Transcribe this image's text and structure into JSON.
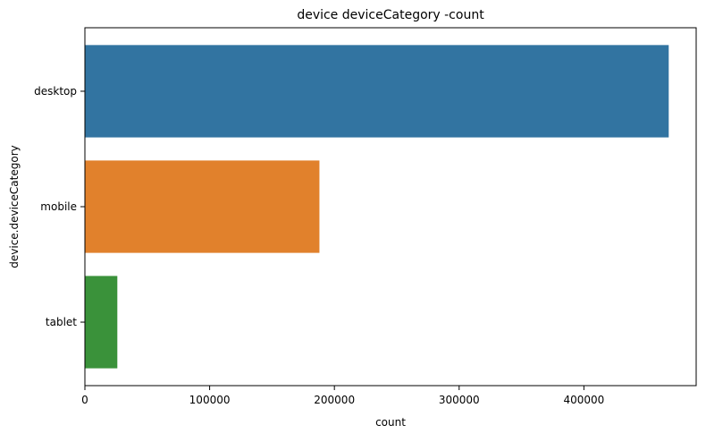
{
  "chart_data": {
    "type": "bar",
    "orientation": "horizontal",
    "title": "device deviceCategory -count",
    "xlabel": "count",
    "ylabel": "device.deviceCategory",
    "categories": [
      "desktop",
      "mobile",
      "tablet"
    ],
    "values": [
      468000,
      188000,
      26000
    ],
    "colors": [
      "#3274a1",
      "#e1812c",
      "#3a923a"
    ],
    "xlim": [
      0,
      490000
    ],
    "xticks": [
      0,
      100000,
      200000,
      300000,
      400000
    ],
    "xtick_labels": [
      "0",
      "100000",
      "200000",
      "300000",
      "400000"
    ],
    "grid": false,
    "legend": "none"
  }
}
